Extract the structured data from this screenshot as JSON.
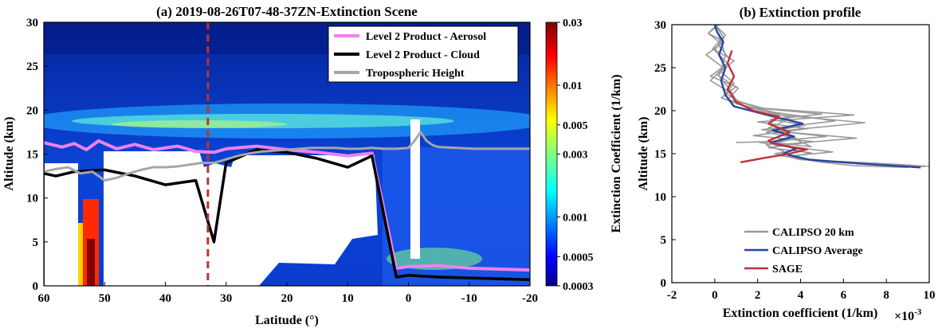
{
  "chart_data": [
    {
      "type": "heatmap",
      "title": "(a) 2019-08-26T07-48-37ZN-Extinction Scene",
      "xlabel": "Latitude (°)",
      "ylabel": "Altitude (km)",
      "xlim": [
        60,
        -20
      ],
      "ylim": [
        0,
        30
      ],
      "x_ticks": [
        "60",
        "50",
        "40",
        "30",
        "20",
        "10",
        "0",
        "-10",
        "-20"
      ],
      "y_ticks": [
        "0",
        "5",
        "10",
        "15",
        "20",
        "25",
        "30"
      ],
      "marked_latitude": 33,
      "colorbar": {
        "label": "Extinction Coefficient (1/km)",
        "scale": "log",
        "range": [
          0.0003,
          0.03
        ],
        "ticks": [
          "0.03",
          "0.01",
          "0.005",
          "0.003",
          "0.001",
          "0.0005",
          "0.0003"
        ],
        "tick_values": [
          0.03,
          0.01,
          0.005,
          0.003,
          0.001,
          0.0005,
          0.0003
        ]
      },
      "legend_position": "top-right",
      "series": [
        {
          "name": "Level 2 Product - Aerosol",
          "color": "#ee82ee",
          "x": [
            60,
            57,
            55,
            53,
            51,
            48,
            45,
            42,
            38,
            35,
            32,
            30,
            25,
            20,
            15,
            10,
            6,
            2,
            0,
            -5,
            -10,
            -15,
            -20
          ],
          "y": [
            16.3,
            15.8,
            16.2,
            15.5,
            16.5,
            15.6,
            16.1,
            15.5,
            15.9,
            15.3,
            15.2,
            15.6,
            15.9,
            15.5,
            15.2,
            14.8,
            15.1,
            2.0,
            2.2,
            2.3,
            2.0,
            1.9,
            1.8
          ]
        },
        {
          "name": "Level 2 Product - Cloud",
          "color": "#000000",
          "x": [
            60,
            58,
            55,
            50,
            45,
            40,
            35,
            32,
            30,
            25,
            20,
            15,
            10,
            6,
            2,
            0,
            -5,
            -10,
            -15,
            -20
          ],
          "y": [
            12.8,
            12.5,
            13.0,
            13.2,
            12.5,
            11.5,
            12.0,
            5.0,
            14.0,
            15.5,
            15.2,
            14.5,
            13.5,
            14.8,
            1.0,
            1.2,
            1.0,
            0.9,
            0.8,
            0.7
          ]
        },
        {
          "name": "Tropospheric Height",
          "color": "#a6a6a6",
          "x": [
            60,
            58,
            56,
            54,
            52,
            50,
            48,
            46,
            44,
            42,
            40,
            38,
            36,
            34,
            32,
            30,
            28,
            26,
            24,
            22,
            20,
            18,
            16,
            14,
            12,
            10,
            8,
            6,
            4,
            2,
            0,
            -1,
            -2,
            -3,
            -4,
            -5,
            -8,
            -11,
            -14,
            -17,
            -20
          ],
          "y": [
            13.0,
            13.3,
            13.5,
            12.8,
            13.0,
            12.0,
            12.3,
            12.8,
            13.2,
            13.5,
            13.5,
            13.6,
            13.8,
            14.0,
            14.0,
            14.4,
            14.8,
            15.1,
            15.3,
            15.4,
            15.5,
            15.6,
            15.7,
            15.7,
            15.7,
            15.6,
            15.6,
            15.7,
            15.6,
            15.6,
            15.7,
            16.5,
            17.5,
            16.5,
            16.0,
            15.8,
            15.7,
            15.6,
            15.6,
            15.6,
            15.6
          ]
        }
      ]
    },
    {
      "type": "line",
      "title": "(b) Extinction profile",
      "xlabel": "Extinction coefficient (1/km)",
      "x_multiplier": "×10",
      "x_multiplier_exp": "-3",
      "ylabel": "Altitude (km)",
      "xlim": [
        -2,
        10
      ],
      "ylim": [
        0,
        30
      ],
      "x_ticks": [
        "-2",
        "0",
        "2",
        "4",
        "6",
        "8",
        "10"
      ],
      "y_ticks": [
        "0",
        "5",
        "10",
        "15",
        "20",
        "25",
        "30"
      ],
      "legend_position": "bottom-right",
      "series": [
        {
          "name": "CALIPSO 20 km",
          "color": "#999999",
          "profiles": [
            {
              "x": [
                9.8,
                7,
                4.5,
                3,
                3.2,
                2.4,
                3.8,
                2.4,
                4.2,
                2.6,
                5.0,
                2.4,
                1.2,
                0.5,
                0.9,
                0.3,
                0.7,
                0.2,
                0.5,
                0.0
              ],
              "y": [
                13.5,
                13.8,
                14.2,
                14.8,
                15.3,
                16.0,
                16.8,
                17.5,
                18.3,
                19.0,
                19.6,
                20.2,
                21.0,
                22.0,
                23.2,
                24.5,
                26.0,
                27.5,
                28.8,
                30
              ]
            },
            {
              "x": [
                9.0,
                6.5,
                5.0,
                3.4,
                5.5,
                2.8,
                6.6,
                2.9,
                7.0,
                3.0,
                1.4,
                0.3,
                1.0,
                -0.2,
                0.6,
                0.0,
                0.3,
                -0.3,
                0.2
              ],
              "y": [
                13.4,
                13.6,
                14.0,
                14.7,
                15.2,
                16.0,
                16.8,
                17.6,
                18.6,
                19.5,
                20.5,
                21.5,
                22.8,
                24.0,
                25.5,
                27.0,
                28.2,
                29.0,
                30
              ]
            },
            {
              "x": [
                10.2,
                7.5,
                4.0,
                2.8,
                4.2,
                2.1,
                5.2,
                2.2,
                5.6,
                2.8,
                1.0,
                0.8,
                -0.2,
                0.4,
                -0.4,
                0.3,
                -0.3,
                0.1
              ],
              "y": [
                13.5,
                13.9,
                14.3,
                15.0,
                15.6,
                16.3,
                17.0,
                17.8,
                18.8,
                19.8,
                20.8,
                22.0,
                23.5,
                25.0,
                26.5,
                27.8,
                29.0,
                30
              ]
            },
            {
              "x": [
                8.5,
                5.8,
                3.5,
                4.5,
                2.5,
                4.6,
                1.8,
                4.3,
                2.0,
                6.5,
                2.2,
                0.6,
                1.1,
                0.1,
                0.9,
                -0.1,
                0.4,
                0.0
              ],
              "y": [
                13.6,
                14.0,
                14.6,
                15.1,
                15.7,
                16.4,
                17.1,
                17.9,
                18.7,
                19.5,
                20.3,
                21.3,
                22.6,
                24.2,
                25.8,
                27.2,
                28.6,
                30
              ]
            },
            {
              "x": [
                1.0,
                2.5,
                4.5,
                3.5,
                3.0,
                2.5,
                3.0,
                3.5,
                2.4,
                1.0,
                0.7,
                0.2,
                0.5,
                0.0
              ],
              "y": [
                16.3,
                16.4,
                15.8,
                17.0,
                17.5,
                18.0,
                18.5,
                19.2,
                20.0,
                21.2,
                22.5,
                24.0,
                26.5,
                30
              ]
            }
          ]
        },
        {
          "name": "CALIPSO Average",
          "color": "#2546a0",
          "x": [
            9.6,
            7.0,
            4.4,
            3.2,
            3.8,
            2.6,
            3.7,
            2.7,
            4.1,
            2.6,
            0.9,
            0.5,
            0.3,
            0.5,
            0.2,
            0.4,
            0.1,
            0.0
          ],
          "y": [
            13.4,
            13.8,
            14.3,
            15.0,
            15.6,
            16.3,
            17.0,
            17.7,
            18.5,
            19.4,
            20.5,
            21.8,
            23.5,
            25.0,
            26.5,
            28.0,
            29.2,
            30
          ]
        },
        {
          "name": "SAGE",
          "color": "#c0303a",
          "x": [
            1.2,
            2.3,
            3.5,
            4.3,
            3.0,
            2.5,
            3.5,
            2.5,
            3.0,
            1.8,
            1.0,
            0.6,
            0.9,
            0.6,
            0.8
          ],
          "y": [
            14.0,
            14.5,
            15.0,
            15.5,
            16.0,
            16.5,
            17.5,
            18.5,
            19.3,
            20.0,
            21.0,
            22.5,
            24.0,
            25.5,
            27.0
          ]
        }
      ]
    }
  ]
}
